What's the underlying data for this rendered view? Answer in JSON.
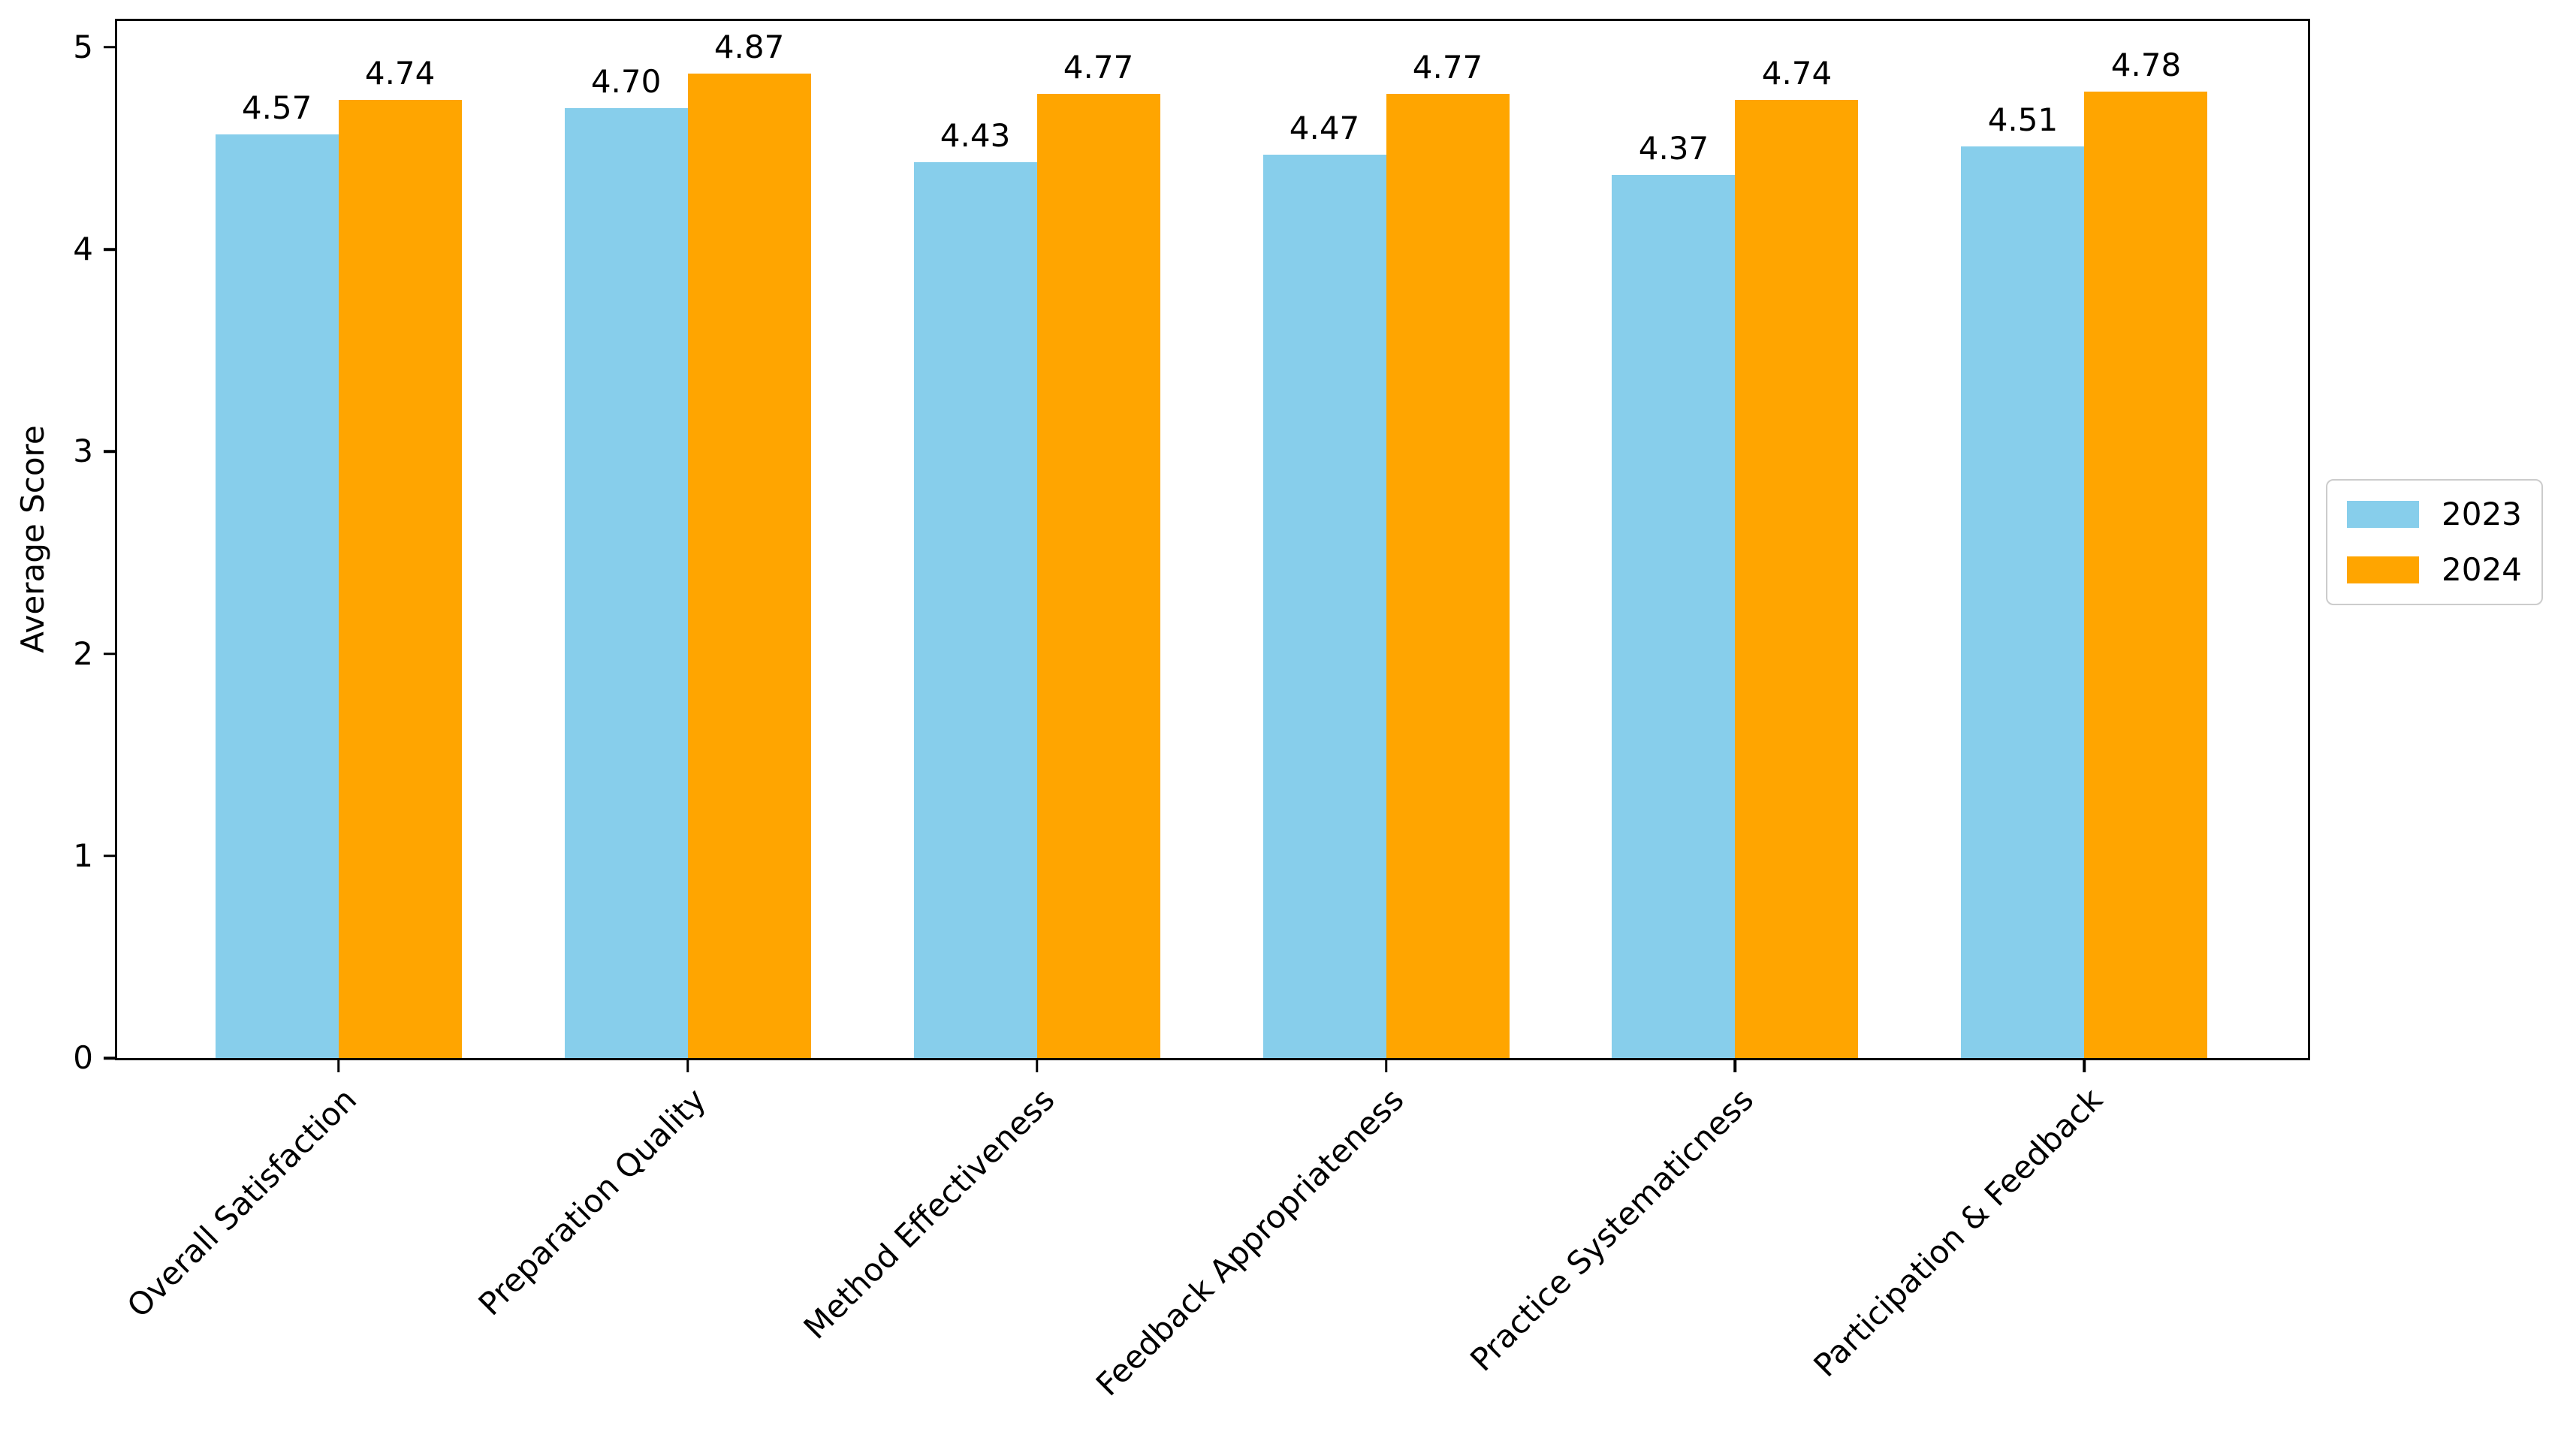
{
  "chart_data": {
    "type": "bar",
    "title": "",
    "categories": [
      "Overall Satisfaction",
      "Preparation Quality",
      "Method Effectiveness",
      "Feedback Appropriateness",
      "Practice Systematicness",
      "Participation & Feedback"
    ],
    "series": [
      {
        "name": "2023",
        "color": "#87CEEB",
        "values": [
          4.57,
          4.7,
          4.43,
          4.47,
          4.37,
          4.51
        ],
        "labels": [
          "4.57",
          "4.70",
          "4.43",
          "4.47",
          "4.37",
          "4.51"
        ]
      },
      {
        "name": "2024",
        "color": "#FFA500",
        "values": [
          4.74,
          4.87,
          4.77,
          4.77,
          4.74,
          4.78
        ],
        "labels": [
          "4.74",
          "4.87",
          "4.77",
          "4.77",
          "4.74",
          "4.78"
        ]
      }
    ],
    "xlabel": "",
    "ylabel": "Average Score",
    "yticks": [
      0,
      1,
      2,
      3,
      4,
      5
    ],
    "ytick_labels": [
      "0",
      "1",
      "2",
      "3",
      "4",
      "5"
    ],
    "ylim": [
      0,
      5.13
    ],
    "grid": false,
    "bar_value_labels_shown": true,
    "x_tick_label_rotation_deg": 45,
    "legend": {
      "position": "right-outside",
      "entries": [
        "2023",
        "2024"
      ],
      "border_color": "#cccccc"
    },
    "colors": {
      "text": "#000000",
      "axis": "#000000",
      "background": "#ffffff"
    }
  }
}
